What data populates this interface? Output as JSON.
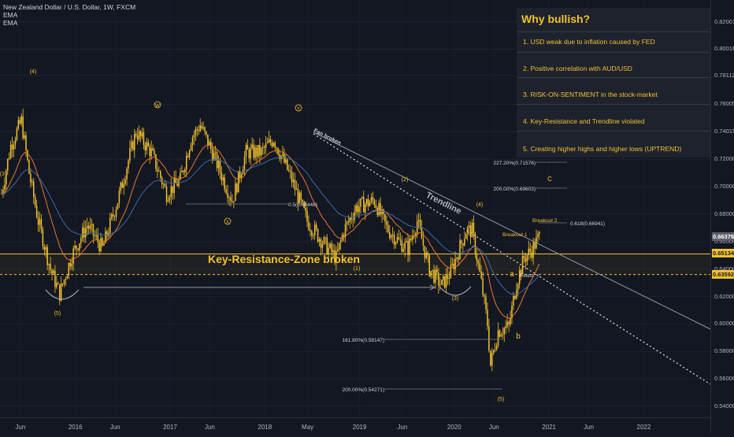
{
  "legend": {
    "title": "New Zealand Dollar / U.S. Dollar, 1W, FXCM",
    "ema1": "EMA",
    "ema2": "EMA"
  },
  "panel": {
    "title": "Why bullish?",
    "items": [
      "1. USD weak due to inflation caused by FED",
      "2. Positive correlation with AUD/USD",
      "3. RISK-ON-SENTIMENT in the stock-market",
      "4. Key-Resistance and Trendline violated",
      "5. Creating higher highs and higher lows (UPTREND)"
    ]
  },
  "chart_data": {
    "type": "candlestick",
    "symbol": "NZD/USD",
    "timeframe": "1W",
    "ylim": [
      0.532,
      0.836
    ],
    "y_ticks": [
      0.54,
      0.56,
      0.58,
      0.6,
      0.62,
      0.64,
      0.66,
      0.68,
      0.7,
      0.72,
      0.74019,
      0.76005,
      0.78112,
      0.80016,
      0.82001
    ],
    "x_labels": [
      "Jun",
      "2016",
      "Jun",
      "2017",
      "Jun",
      "2018",
      "May",
      "2019",
      "Jun",
      "2020",
      "Jun",
      "2021",
      "Jun",
      "2022"
    ],
    "price_tags": [
      {
        "value": 0.66378,
        "text": "0.66378",
        "color": "#ffffff",
        "bg": "#5d606b"
      },
      {
        "value": 0.65134,
        "text": "0.65134",
        "color": "#131722",
        "bg": "#f2c230"
      },
      {
        "value": 0.63592,
        "text": "0.63592",
        "color": "#131722",
        "bg": "#f2c230"
      }
    ],
    "key_resistance": {
      "value": 0.651,
      "label": "Key-Resistance-Zone broken"
    },
    "dashed_support": 0.636,
    "ema_fast_name": "EMA",
    "ema_slow_name": "EMA",
    "annotations": {
      "wave_4_left": "(4)",
      "wave_3_left": "(3)",
      "wave_5_left": "(5)",
      "wave_w": "W",
      "wave_x": "X",
      "wave_y": "Y",
      "wave_1": "(1)",
      "wave_2": "(2)",
      "wave_3": "(3)",
      "wave_4": "(4)",
      "wave_5": "(5)",
      "wave_a": "a",
      "wave_b": "b",
      "wave_c": "C",
      "fan_broken": "Fan broken",
      "trendline": "Trendline",
      "breakout_1": "Breakout 1",
      "breakout_2": "Breakout 2",
      "retest": "Retest",
      "fib_05": "0.5(0.68448)",
      "fib_1618": "161.80%(0.58147)",
      "fib_2000": "200.00%(0.54271)",
      "fib_0618": "0.618(0.66941)",
      "fib_2000_up": "200.00%(0.69603)",
      "fib_2272_up": "227.20%(0.71576)"
    },
    "anchors": [
      {
        "t": 0,
        "p": 0.695
      },
      {
        "t": 6,
        "p": 0.73
      },
      {
        "t": 13,
        "p": 0.748
      },
      {
        "t": 18,
        "p": 0.71
      },
      {
        "t": 24,
        "p": 0.675
      },
      {
        "t": 32,
        "p": 0.64
      },
      {
        "t": 38,
        "p": 0.622
      },
      {
        "t": 46,
        "p": 0.65
      },
      {
        "t": 56,
        "p": 0.672
      },
      {
        "t": 66,
        "p": 0.655
      },
      {
        "t": 76,
        "p": 0.69
      },
      {
        "t": 88,
        "p": 0.74
      },
      {
        "t": 98,
        "p": 0.725
      },
      {
        "t": 108,
        "p": 0.695
      },
      {
        "t": 117,
        "p": 0.705
      },
      {
        "t": 124,
        "p": 0.735
      },
      {
        "t": 130,
        "p": 0.745
      },
      {
        "t": 138,
        "p": 0.725
      },
      {
        "t": 146,
        "p": 0.703
      },
      {
        "t": 151,
        "p": 0.69
      },
      {
        "t": 160,
        "p": 0.725
      },
      {
        "t": 170,
        "p": 0.725
      },
      {
        "t": 178,
        "p": 0.735
      },
      {
        "t": 190,
        "p": 0.705
      },
      {
        "t": 200,
        "p": 0.675
      },
      {
        "t": 210,
        "p": 0.66
      },
      {
        "t": 219,
        "p": 0.648
      },
      {
        "t": 224,
        "p": 0.668
      },
      {
        "t": 232,
        "p": 0.685
      },
      {
        "t": 244,
        "p": 0.69
      },
      {
        "t": 252,
        "p": 0.67
      },
      {
        "t": 260,
        "p": 0.66
      },
      {
        "t": 266,
        "p": 0.655
      },
      {
        "t": 272,
        "p": 0.675
      },
      {
        "t": 280,
        "p": 0.64
      },
      {
        "t": 288,
        "p": 0.628
      },
      {
        "t": 294,
        "p": 0.638
      },
      {
        "t": 304,
        "p": 0.668
      },
      {
        "t": 308,
        "p": 0.668
      },
      {
        "t": 314,
        "p": 0.63
      },
      {
        "t": 318,
        "p": 0.6
      },
      {
        "t": 320,
        "p": 0.57
      },
      {
        "t": 325,
        "p": 0.595
      },
      {
        "t": 332,
        "p": 0.598
      },
      {
        "t": 337,
        "p": 0.63
      },
      {
        "t": 342,
        "p": 0.648
      },
      {
        "t": 347,
        "p": 0.654
      },
      {
        "t": 352,
        "p": 0.664
      }
    ]
  }
}
